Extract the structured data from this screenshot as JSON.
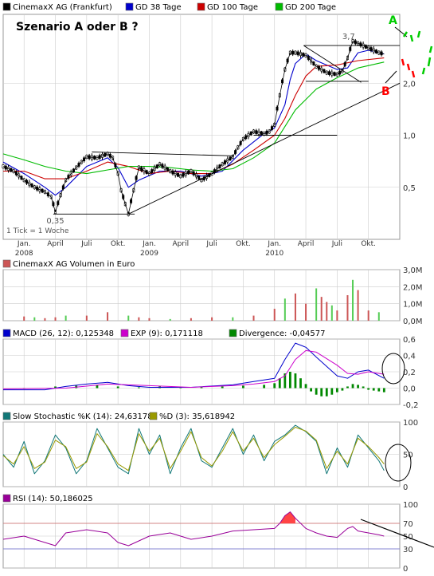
{
  "colors": {
    "price": "#000000",
    "ma38": "#0000cc",
    "ma100": "#cc0000",
    "ma200": "#00bb00",
    "volume_up": "#55cc55",
    "volume_down": "#cc5555",
    "macd": "#0000cc",
    "exp": "#cc00cc",
    "divergence": "#008800",
    "stoch_k": "#117777",
    "stoch_d": "#999900",
    "rsi": "#990099",
    "rsi_high_fill": "#ff4444",
    "annotation_red": "#ff0000",
    "annotation_green": "#00cc00",
    "grid": "#cccccc",
    "frame": "#999999"
  },
  "chart_data": [
    {
      "type": "line",
      "legend": [
        {
          "name": "CinemaxX AG (Frankfurt)",
          "key": "price"
        },
        {
          "name": "GD 38 Tage",
          "key": "ma38"
        },
        {
          "name": "GD 100 Tage",
          "key": "ma100"
        },
        {
          "name": "GD 200 Tage",
          "key": "ma200"
        }
      ],
      "title": "Szenario A oder B ?",
      "yscale": "log",
      "ylim": [
        0.25,
        5
      ],
      "y_ticks": [
        {
          "label": "0,5",
          "value": 0.5
        },
        {
          "label": "1,0",
          "value": 1.0
        },
        {
          "label": "2,0",
          "value": 2.0
        }
      ],
      "x_ticks": [
        {
          "label": "Jan.",
          "label2": "2008",
          "t": 0
        },
        {
          "label": "April",
          "t": 3
        },
        {
          "label": "Juli",
          "t": 6
        },
        {
          "label": "Okt.",
          "t": 9
        },
        {
          "label": "Jan.",
          "label2": "2009",
          "t": 12
        },
        {
          "label": "April",
          "t": 15
        },
        {
          "label": "Juli",
          "t": 18
        },
        {
          "label": "Okt.",
          "t": 21
        },
        {
          "label": "Jan.",
          "label2": "2010",
          "t": 24
        },
        {
          "label": "April",
          "t": 27
        },
        {
          "label": "Juli",
          "t": 30
        },
        {
          "label": "Okt.",
          "t": 33
        }
      ],
      "xlim": [
        -2,
        36
      ],
      "annotations": {
        "low": "0,35",
        "high": "3,7",
        "tick_note": "1 Tick = 1 Woche",
        "scenario_a": "A",
        "scenario_b": "B"
      },
      "series": [
        {
          "key": "price",
          "x": [
            -2,
            -1,
            0,
            1,
            2,
            2.6,
            3,
            3.5,
            4,
            5,
            5.5,
            6,
            7,
            8,
            8.5,
            9,
            9.3,
            9.7,
            10,
            10.5,
            11,
            12,
            13,
            14,
            15,
            16,
            17,
            18,
            19,
            20,
            20.5,
            21,
            22,
            23,
            23.5,
            24,
            24.5,
            25,
            25.5,
            26,
            27,
            28,
            29,
            30,
            30.5,
            31,
            31.5,
            32,
            33,
            34,
            34.5
          ],
          "y": [
            0.66,
            0.62,
            0.55,
            0.5,
            0.47,
            0.44,
            0.36,
            0.45,
            0.55,
            0.65,
            0.7,
            0.75,
            0.74,
            0.78,
            0.74,
            0.6,
            0.48,
            0.4,
            0.35,
            0.48,
            0.65,
            0.6,
            0.68,
            0.62,
            0.58,
            0.62,
            0.55,
            0.6,
            0.68,
            0.75,
            0.85,
            0.95,
            1.05,
            1.02,
            1.05,
            1.15,
            1.7,
            2.4,
            3.0,
            3.0,
            2.9,
            2.5,
            2.3,
            2.25,
            2.35,
            2.8,
            3.5,
            3.4,
            3.2,
            3.0,
            2.95
          ]
        },
        {
          "key": "ma38",
          "x": [
            -2,
            0,
            2,
            3,
            4,
            6,
            8,
            9,
            10,
            11,
            13,
            15,
            17,
            19,
            21,
            23,
            24,
            25,
            25.5,
            26,
            27,
            28,
            30,
            31,
            32,
            33,
            34.5
          ],
          "y": [
            0.7,
            0.6,
            0.5,
            0.45,
            0.5,
            0.66,
            0.74,
            0.65,
            0.5,
            0.55,
            0.62,
            0.62,
            0.58,
            0.62,
            0.82,
            1.02,
            1.1,
            1.5,
            2.1,
            2.6,
            2.95,
            2.7,
            2.4,
            2.45,
            3.0,
            3.1,
            2.95
          ]
        },
        {
          "key": "ma100",
          "x": [
            -2,
            0,
            2,
            4,
            6,
            8,
            10,
            12,
            14,
            16,
            18,
            20,
            22,
            24,
            25,
            26,
            27,
            28,
            30,
            32,
            34.5
          ],
          "y": [
            0.62,
            0.62,
            0.56,
            0.56,
            0.62,
            0.7,
            0.66,
            0.6,
            0.62,
            0.6,
            0.6,
            0.68,
            0.82,
            1.0,
            1.25,
            1.7,
            2.2,
            2.5,
            2.55,
            2.7,
            2.8
          ]
        },
        {
          "key": "ma200",
          "x": [
            -2,
            0,
            2,
            4,
            6,
            8,
            10,
            12,
            14,
            16,
            18,
            20,
            22,
            24,
            26,
            28,
            30,
            32,
            34.5
          ],
          "y": [
            0.78,
            0.72,
            0.66,
            0.62,
            0.6,
            0.63,
            0.66,
            0.66,
            0.65,
            0.63,
            0.62,
            0.64,
            0.74,
            0.9,
            1.4,
            1.85,
            2.15,
            2.45,
            2.65
          ]
        }
      ]
    },
    {
      "type": "bar",
      "legend": [
        {
          "name": "CinemaxX AG Volumen in Euro",
          "key": "volume"
        }
      ],
      "ylim": [
        0,
        3.0
      ],
      "y_ticks": [
        {
          "label": "3,0M",
          "value": 3.0
        },
        {
          "label": "2,0M",
          "value": 2.0
        },
        {
          "label": "1,0M",
          "value": 1.0
        },
        {
          "label": "0,0M",
          "value": 0.0
        }
      ],
      "x": [
        0,
        1,
        2,
        3,
        4,
        6,
        8,
        10,
        11,
        12,
        14,
        16,
        18,
        20,
        22,
        24,
        25,
        26,
        27,
        28,
        28.5,
        29,
        29.5,
        30,
        31,
        31.5,
        32,
        33,
        34
      ],
      "values": [
        0.25,
        0.2,
        0.15,
        0.2,
        0.3,
        0.3,
        0.5,
        0.3,
        0.2,
        0.15,
        0.1,
        0.15,
        0.2,
        0.2,
        0.3,
        0.7,
        1.3,
        1.6,
        1.0,
        1.9,
        1.4,
        1.1,
        0.9,
        0.6,
        1.5,
        2.4,
        1.8,
        0.6,
        0.5
      ]
    },
    {
      "type": "line",
      "legend": [
        {
          "name": "MACD (26, 12): 0,125348",
          "key": "macd"
        },
        {
          "name": "EXP (9): 0,171118",
          "key": "exp"
        },
        {
          "name": "Divergence: -0,04577",
          "key": "divergence"
        }
      ],
      "ylim": [
        -0.2,
        0.6
      ],
      "y_ticks": [
        {
          "label": "0,6",
          "value": 0.6
        },
        {
          "label": "0,4",
          "value": 0.4
        },
        {
          "label": "0,2",
          "value": 0.2
        },
        {
          "label": "0,0",
          "value": 0.0
        },
        {
          "label": "-0,2",
          "value": -0.2
        }
      ],
      "series": [
        {
          "key": "macd",
          "x": [
            -2,
            2,
            4,
            6,
            8,
            10,
            12,
            16,
            20,
            22,
            24,
            25,
            26,
            27,
            28,
            30,
            31,
            32,
            33,
            34.5
          ],
          "y": [
            -0.02,
            -0.02,
            0.02,
            0.05,
            0.07,
            0.03,
            0.01,
            0.01,
            0.04,
            0.08,
            0.12,
            0.35,
            0.55,
            0.5,
            0.38,
            0.15,
            0.12,
            0.2,
            0.22,
            0.12
          ]
        },
        {
          "key": "exp",
          "x": [
            -2,
            4,
            8,
            12,
            16,
            20,
            22,
            24,
            25,
            26,
            27,
            28,
            30,
            31,
            32,
            33,
            34.5
          ],
          "y": [
            -0.01,
            0.0,
            0.05,
            0.03,
            0.01,
            0.03,
            0.05,
            0.08,
            0.15,
            0.35,
            0.46,
            0.44,
            0.28,
            0.18,
            0.17,
            0.2,
            0.17
          ]
        }
      ],
      "divergence": {
        "x": [
          0,
          3,
          5,
          7,
          9,
          11,
          13,
          15,
          17,
          19,
          21,
          23,
          24,
          24.5,
          25,
          25.5,
          26,
          26.5,
          27,
          27.5,
          28,
          28.5,
          29,
          29.5,
          30,
          30.5,
          31,
          31.5,
          32,
          32.5,
          33,
          33.5,
          34,
          34.5
        ],
        "y": [
          -0.01,
          0.02,
          0.03,
          0.04,
          0.02,
          0.01,
          0.02,
          0.01,
          0.01,
          0.02,
          0.03,
          0.04,
          0.06,
          0.12,
          0.18,
          0.2,
          0.18,
          0.12,
          0.05,
          -0.04,
          -0.08,
          -0.1,
          -0.1,
          -0.08,
          -0.05,
          -0.03,
          0.02,
          0.05,
          0.04,
          0.02,
          -0.02,
          -0.03,
          -0.04,
          -0.05
        ]
      }
    },
    {
      "type": "line",
      "legend": [
        {
          "name": "Slow Stochastic %K (14): 24,631783",
          "key": "stoch_k"
        },
        {
          "name": "%D (3): 35,618942",
          "key": "stoch_d"
        }
      ],
      "ylim": [
        0,
        100
      ],
      "y_ticks": [
        {
          "label": "100",
          "value": 100
        },
        {
          "label": "50",
          "value": 50
        },
        {
          "label": "0",
          "value": 0
        }
      ],
      "series": [
        {
          "key": "stoch_k",
          "x": [
            -2,
            -1,
            0,
            1,
            2,
            3,
            4,
            5,
            6,
            7,
            8,
            9,
            10,
            11,
            12,
            13,
            14,
            15,
            16,
            17,
            18,
            19,
            20,
            21,
            22,
            23,
            24,
            25,
            26,
            27,
            28,
            29,
            30,
            31,
            32,
            33,
            34,
            34.5
          ],
          "y": [
            50,
            30,
            70,
            20,
            40,
            80,
            60,
            20,
            40,
            90,
            60,
            30,
            20,
            90,
            50,
            80,
            20,
            60,
            90,
            40,
            30,
            60,
            90,
            50,
            80,
            40,
            70,
            80,
            95,
            85,
            70,
            20,
            60,
            30,
            80,
            60,
            40,
            25
          ]
        },
        {
          "key": "stoch_d",
          "x": [
            -2,
            -1,
            0,
            1,
            2,
            3,
            4,
            5,
            6,
            7,
            8,
            9,
            10,
            11,
            12,
            13,
            14,
            15,
            16,
            17,
            18,
            19,
            20,
            21,
            22,
            23,
            24,
            25,
            26,
            27,
            28,
            29,
            30,
            31,
            32,
            33,
            34,
            34.5
          ],
          "y": [
            48,
            35,
            62,
            28,
            38,
            72,
            62,
            28,
            38,
            82,
            62,
            35,
            25,
            82,
            55,
            75,
            28,
            55,
            85,
            45,
            32,
            55,
            85,
            55,
            75,
            45,
            65,
            78,
            92,
            86,
            72,
            28,
            55,
            35,
            75,
            62,
            45,
            35
          ]
        }
      ]
    },
    {
      "type": "line",
      "legend": [
        {
          "name": "RSI (14): 50,186025",
          "key": "rsi"
        }
      ],
      "ylim": [
        0,
        100
      ],
      "y_ticks": [
        {
          "label": "100",
          "value": 100
        },
        {
          "label": "70",
          "value": 70
        },
        {
          "label": "50",
          "value": 50
        },
        {
          "label": "30",
          "value": 30
        },
        {
          "label": "0",
          "value": 0
        }
      ],
      "reference_lines": [
        70,
        30
      ],
      "series": [
        {
          "key": "rsi",
          "x": [
            -2,
            0,
            2,
            3,
            4,
            6,
            8,
            9,
            10,
            12,
            14,
            16,
            18,
            20,
            22,
            24,
            24.5,
            25,
            25.5,
            26,
            27,
            28,
            29,
            30,
            31,
            31.5,
            32,
            33,
            34,
            34.5
          ],
          "y": [
            45,
            50,
            40,
            35,
            55,
            60,
            55,
            40,
            35,
            50,
            55,
            45,
            50,
            58,
            60,
            62,
            70,
            82,
            88,
            78,
            62,
            55,
            50,
            48,
            62,
            65,
            58,
            55,
            52,
            50
          ]
        }
      ]
    }
  ]
}
